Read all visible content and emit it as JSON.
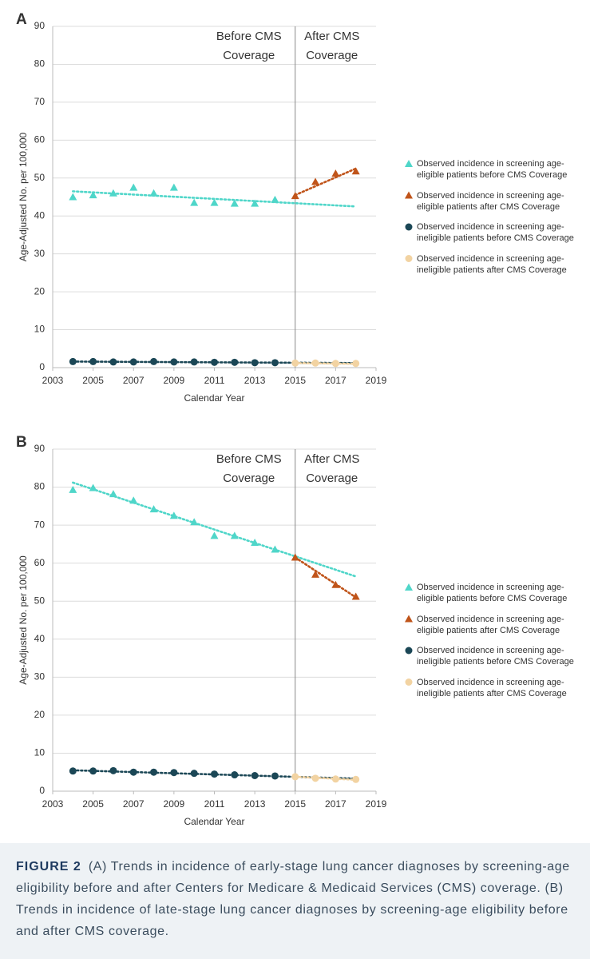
{
  "chart_data": [
    {
      "type": "line",
      "label": "A",
      "x_label": "Calendar Year",
      "y_label": "Age-Adjusted No. per 100,000",
      "xlim": [
        2003,
        2019
      ],
      "xticks": [
        2003,
        2005,
        2007,
        2009,
        2011,
        2013,
        2015,
        2017,
        2019
      ],
      "ylim": [
        0,
        90
      ],
      "yticks": [
        0,
        10,
        20,
        30,
        40,
        50,
        60,
        70,
        80,
        90
      ],
      "grid": true,
      "divider_x": 2015,
      "annotations": {
        "before": [
          "Before CMS",
          "Coverage"
        ],
        "after": [
          "After CMS",
          "Coverage"
        ]
      },
      "series": [
        {
          "name": "Observed incidence in screening age-eligible patients before CMS Coverage",
          "color": "#4fd6c9",
          "marker": "triangle",
          "x": [
            2004,
            2005,
            2006,
            2007,
            2008,
            2009,
            2010,
            2011,
            2012,
            2013,
            2014
          ],
          "values": [
            45,
            45.5,
            46,
            47.5,
            46,
            47.5,
            43.5,
            43.5,
            43.3,
            43.3,
            44.3
          ],
          "trend": {
            "x": [
              2004,
              2018
            ],
            "values": [
              46.5,
              42.5
            ]
          }
        },
        {
          "name": "Observed incidence in screening age-eligible patients after CMS Coverage",
          "color": "#c0541a",
          "marker": "triangle",
          "x": [
            2015,
            2016,
            2017,
            2018
          ],
          "values": [
            45.3,
            49,
            51.2,
            51.8
          ],
          "trend": {
            "x": [
              2015,
              2018
            ],
            "values": [
              45.5,
              52.5
            ]
          }
        },
        {
          "name": "Observed incidence in screening age-ineligible patients before CMS Coverage",
          "color": "#1b4756",
          "marker": "circle",
          "x": [
            2004,
            2005,
            2006,
            2007,
            2008,
            2009,
            2010,
            2011,
            2012,
            2013,
            2014
          ],
          "values": [
            1.6,
            1.6,
            1.5,
            1.5,
            1.6,
            1.5,
            1.5,
            1.4,
            1.4,
            1.3,
            1.3
          ],
          "trend": {
            "x": [
              2004,
              2018
            ],
            "values": [
              1.6,
              1.2
            ]
          }
        },
        {
          "name": "Observed incidence in screening age-ineligible patients after CMS Coverage",
          "color": "#f2d3a2",
          "marker": "circle",
          "x": [
            2015,
            2016,
            2017,
            2018
          ],
          "values": [
            1.2,
            1.2,
            1.1,
            1.1
          ],
          "trend": {
            "x": [
              2015,
              2018
            ],
            "values": [
              1.2,
              1.0
            ]
          }
        }
      ]
    },
    {
      "type": "line",
      "label": "B",
      "x_label": "Calendar Year",
      "y_label": "Age-Adjusted No. per 100,000",
      "xlim": [
        2003,
        2019
      ],
      "xticks": [
        2003,
        2005,
        2007,
        2009,
        2011,
        2013,
        2015,
        2017,
        2019
      ],
      "ylim": [
        0,
        90
      ],
      "yticks": [
        0,
        10,
        20,
        30,
        40,
        50,
        60,
        70,
        80,
        90
      ],
      "grid": true,
      "divider_x": 2015,
      "annotations": {
        "before": [
          "Before CMS",
          "Coverage"
        ],
        "after": [
          "After CMS",
          "Coverage"
        ]
      },
      "series": [
        {
          "name": "Observed incidence in screening age-eligible patients before CMS Coverage",
          "color": "#4fd6c9",
          "marker": "triangle",
          "x": [
            2004,
            2005,
            2006,
            2007,
            2008,
            2009,
            2010,
            2011,
            2012,
            2013,
            2014
          ],
          "values": [
            79.3,
            79.8,
            78.2,
            76.5,
            74.2,
            72.5,
            70.8,
            67.2,
            67.2,
            65.4,
            63.6
          ],
          "trend": {
            "x": [
              2004,
              2018
            ],
            "values": [
              81.2,
              56.5
            ]
          }
        },
        {
          "name": "Observed incidence in screening age-eligible patients after CMS Coverage",
          "color": "#c0541a",
          "marker": "triangle",
          "x": [
            2015,
            2016,
            2017,
            2018
          ],
          "values": [
            61.5,
            57,
            54.3,
            51.2
          ],
          "trend": {
            "x": [
              2015,
              2018
            ],
            "values": [
              61.5,
              51
            ]
          }
        },
        {
          "name": "Observed incidence in screening age-ineligible patients before CMS Coverage",
          "color": "#1b4756",
          "marker": "circle",
          "x": [
            2004,
            2005,
            2006,
            2007,
            2008,
            2009,
            2010,
            2011,
            2012,
            2013,
            2014
          ],
          "values": [
            5.3,
            5.3,
            5.4,
            5.0,
            5.0,
            4.9,
            4.7,
            4.5,
            4.3,
            4.1,
            4.0
          ],
          "trend": {
            "x": [
              2004,
              2018
            ],
            "values": [
              5.5,
              3.3
            ]
          }
        },
        {
          "name": "Observed incidence in screening age-ineligible patients after CMS Coverage",
          "color": "#f2d3a2",
          "marker": "circle",
          "x": [
            2015,
            2016,
            2017,
            2018
          ],
          "values": [
            3.8,
            3.4,
            3.2,
            3.1
          ],
          "trend": {
            "x": [
              2015,
              2018
            ],
            "values": [
              3.8,
              3.0
            ]
          }
        }
      ]
    }
  ],
  "caption": {
    "label": "FIGURE 2",
    "text": "(A) Trends in incidence of early-stage lung cancer diagnoses by screening-age eligibility before and after Centers for Medicare & Medicaid Services (CMS) coverage. (B) Trends in incidence of late-stage lung cancer diagnoses by screening-age eligibility before and after CMS coverage."
  }
}
